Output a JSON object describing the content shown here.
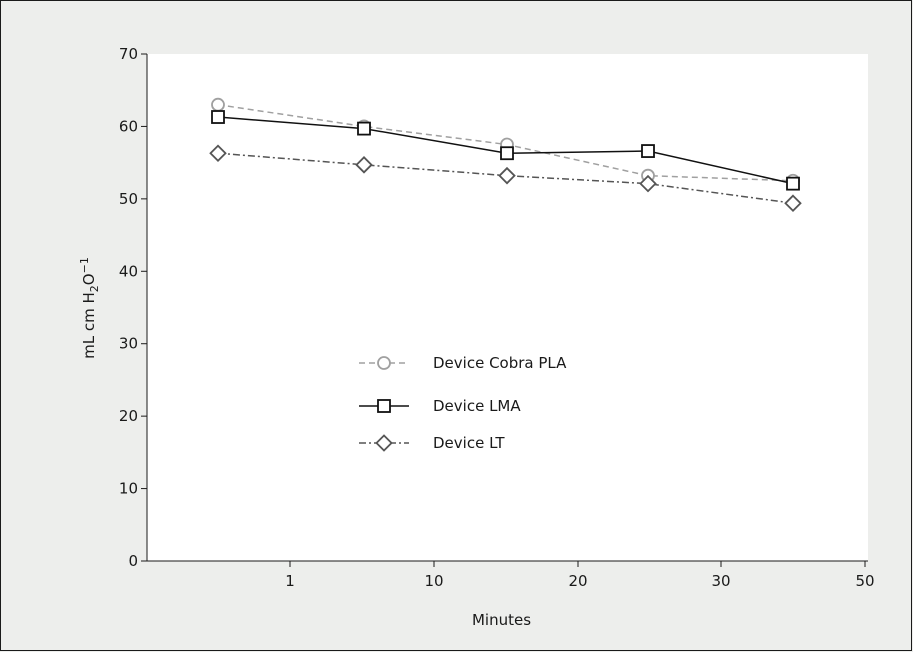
{
  "chart_data": {
    "type": "line",
    "xlabel": "Minutes",
    "ylabel": "mL cm H₂O⁻¹",
    "ylabel_parts": {
      "a": "mL cm H",
      "sub": "2",
      "b": "O",
      "sup": "−1"
    },
    "x_tick_labels": [
      "1",
      "10",
      "20",
      "30",
      "50"
    ],
    "y_ticks": [
      0,
      10,
      20,
      30,
      40,
      50,
      60,
      70
    ],
    "ylim": [
      0,
      70
    ],
    "x": [
      1,
      10,
      20,
      30,
      50
    ],
    "series": [
      {
        "name": "Device Cobra PLA",
        "marker": "circle",
        "dash": "dashed",
        "color": "#a0a0a0",
        "values": [
          63.0,
          60.0,
          57.5,
          53.2,
          52.5
        ]
      },
      {
        "name": "Device LMA",
        "marker": "square",
        "dash": "solid",
        "color": "#111111",
        "values": [
          61.3,
          59.7,
          56.3,
          56.6,
          52.1
        ]
      },
      {
        "name": "Device LT",
        "marker": "diamond",
        "dash": "dashdot",
        "color": "#555555",
        "values": [
          56.3,
          54.7,
          53.2,
          52.1,
          49.4
        ]
      }
    ],
    "grid": false,
    "legend_position": "center-left"
  }
}
